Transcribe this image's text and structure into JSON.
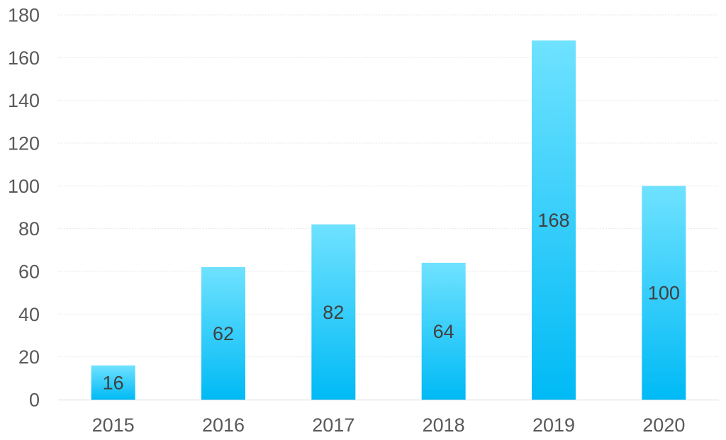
{
  "chart_data": {
    "type": "bar",
    "title": "",
    "xlabel": "",
    "ylabel": "",
    "categories": [
      "2015",
      "2016",
      "2017",
      "2018",
      "2019",
      "2020"
    ],
    "values": [
      16,
      62,
      82,
      64,
      168,
      100
    ],
    "data_labels": [
      "16",
      "62",
      "82",
      "64",
      "168",
      "100"
    ],
    "ylim": [
      0,
      180
    ],
    "yticks": [
      0,
      20,
      40,
      60,
      80,
      100,
      120,
      140,
      160,
      180
    ],
    "ytick_labels": [
      "0",
      "20",
      "40",
      "60",
      "80",
      "100",
      "120",
      "140",
      "160",
      "180"
    ],
    "grid": true,
    "legend": "none",
    "colors": {
      "bar_top": "#6FE2FF",
      "bar_bottom": "#00BAF5",
      "grid": "#e6e6e6",
      "axis": "#d9d9d9",
      "tick_text": "#595959",
      "label_text": "#404040"
    }
  }
}
